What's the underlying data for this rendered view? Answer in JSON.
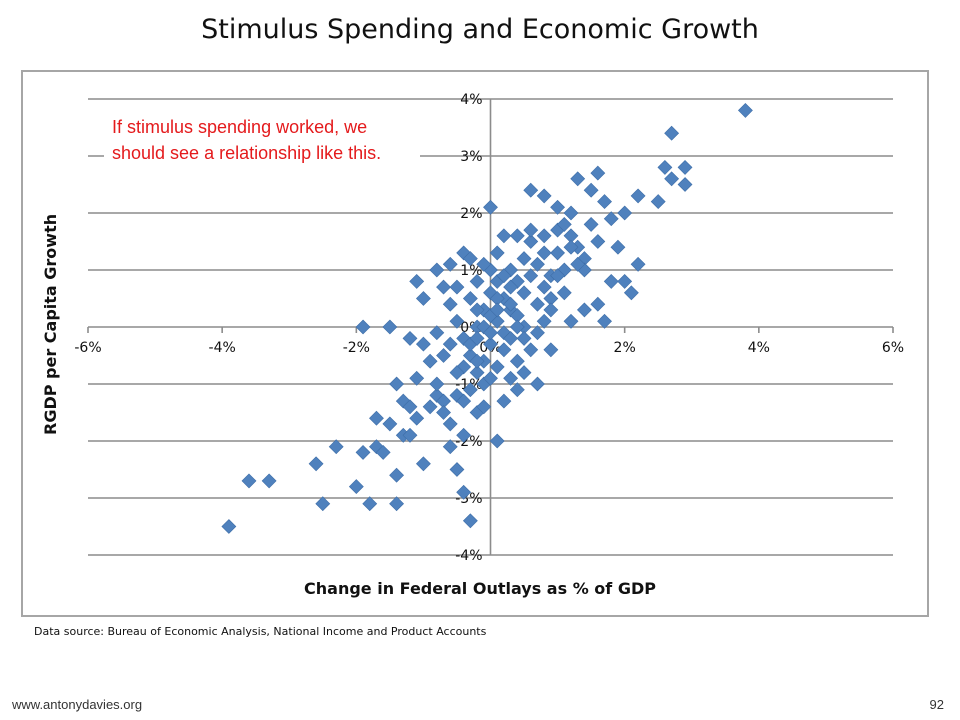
{
  "title": "Stimulus Spending and Economic Growth",
  "annotation": "If stimulus spending worked, we should see a relationship like this.",
  "source": "Data source: Bureau of Economic Analysis, National Income and Product Accounts",
  "footer": {
    "url": "www.antonydavies.org",
    "page": "92"
  },
  "colors": {
    "marker": "#4f81bd",
    "annotation": "#e41a1c",
    "grid": "#8c8c8c"
  },
  "chart_data": {
    "type": "scatter",
    "title": "Stimulus Spending and Economic Growth",
    "xlabel": "Change in Federal Outlays as % of GDP",
    "ylabel": "RGDP per Capita Growth",
    "xlim": [
      -6,
      6
    ],
    "ylim": [
      -4,
      4
    ],
    "xticks": [
      "-6%",
      "-4%",
      "-2%",
      "0%",
      "2%",
      "4%",
      "6%"
    ],
    "yticks": [
      "-4%",
      "-3%",
      "-2%",
      "-1%",
      "0%",
      "1%",
      "2%",
      "3%",
      "4%"
    ],
    "grid": "horizontal",
    "legend": "none",
    "marker": "diamond",
    "points": [
      [
        -3.9,
        -3.5
      ],
      [
        -3.6,
        -2.7
      ],
      [
        -3.3,
        -2.7
      ],
      [
        -2.6,
        -2.4
      ],
      [
        -2.5,
        -3.1
      ],
      [
        -2.3,
        -2.1
      ],
      [
        -2.0,
        -2.8
      ],
      [
        -1.9,
        -2.2
      ],
      [
        -1.8,
        -3.1
      ],
      [
        -1.7,
        -2.1
      ],
      [
        -1.7,
        -1.6
      ],
      [
        -1.6,
        -2.2
      ],
      [
        -1.5,
        -1.7
      ],
      [
        -1.4,
        -2.6
      ],
      [
        -1.4,
        -3.1
      ],
      [
        -1.3,
        -1.9
      ],
      [
        -1.2,
        -1.9
      ],
      [
        -1.4,
        -1.0
      ],
      [
        -1.3,
        -1.3
      ],
      [
        -1.1,
        -0.9
      ],
      [
        -1.0,
        -2.4
      ],
      [
        -0.8,
        -1.2
      ],
      [
        -0.7,
        -1.3
      ],
      [
        -0.6,
        -2.1
      ],
      [
        -0.5,
        -2.5
      ],
      [
        -0.4,
        -1.9
      ],
      [
        -0.4,
        -2.9
      ],
      [
        -0.6,
        -0.3
      ],
      [
        -0.3,
        -3.4
      ],
      [
        -0.2,
        -1.5
      ],
      [
        -0.1,
        -1.0
      ],
      [
        0.1,
        -2.0
      ],
      [
        -1.9,
        0.0
      ],
      [
        -1.5,
        0.0
      ],
      [
        -1.2,
        -0.2
      ],
      [
        -1.0,
        -0.3
      ],
      [
        -0.8,
        -0.1
      ],
      [
        -1.1,
        0.8
      ],
      [
        -1.0,
        0.5
      ],
      [
        -0.8,
        1.0
      ],
      [
        -0.7,
        0.7
      ],
      [
        -0.6,
        0.4
      ],
      [
        -0.5,
        0.1
      ],
      [
        -0.4,
        -0.2
      ],
      [
        -0.3,
        -0.5
      ],
      [
        -0.2,
        -0.8
      ],
      [
        -0.1,
        -0.6
      ],
      [
        0.0,
        -0.3
      ],
      [
        0.1,
        0.1
      ],
      [
        0.2,
        -0.1
      ],
      [
        0.3,
        0.3
      ],
      [
        0.4,
        0.2
      ],
      [
        0.5,
        0.0
      ],
      [
        -0.9,
        -0.6
      ],
      [
        -0.8,
        -1.0
      ],
      [
        -0.7,
        -1.5
      ],
      [
        -0.6,
        -1.7
      ],
      [
        -0.5,
        -1.2
      ],
      [
        -0.4,
        -0.7
      ],
      [
        -0.3,
        -0.3
      ],
      [
        -0.2,
        0.0
      ],
      [
        -0.1,
        0.3
      ],
      [
        0.0,
        0.6
      ],
      [
        0.1,
        0.8
      ],
      [
        0.2,
        0.5
      ],
      [
        0.3,
        1.0
      ],
      [
        0.4,
        0.8
      ],
      [
        0.5,
        1.2
      ],
      [
        0.6,
        1.5
      ],
      [
        0.7,
        1.1
      ],
      [
        0.8,
        0.7
      ],
      [
        0.9,
        0.9
      ],
      [
        1.0,
        1.3
      ],
      [
        1.1,
        1.0
      ],
      [
        1.2,
        1.6
      ],
      [
        1.3,
        1.4
      ],
      [
        1.4,
        1.2
      ],
      [
        1.5,
        1.8
      ],
      [
        0.6,
        2.4
      ],
      [
        0.8,
        2.3
      ],
      [
        1.0,
        2.1
      ],
      [
        1.2,
        2.0
      ],
      [
        1.3,
        2.6
      ],
      [
        1.5,
        2.4
      ],
      [
        1.6,
        2.7
      ],
      [
        1.7,
        2.2
      ],
      [
        1.8,
        1.9
      ],
      [
        2.0,
        2.0
      ],
      [
        2.2,
        2.3
      ],
      [
        2.5,
        2.2
      ],
      [
        2.6,
        2.8
      ],
      [
        2.7,
        2.6
      ],
      [
        2.9,
        2.8
      ],
      [
        2.9,
        2.5
      ],
      [
        2.7,
        3.4
      ],
      [
        3.8,
        3.8
      ],
      [
        1.8,
        0.8
      ],
      [
        1.9,
        1.4
      ],
      [
        2.0,
        0.8
      ],
      [
        2.1,
        0.6
      ],
      [
        2.2,
        1.1
      ],
      [
        1.7,
        0.1
      ],
      [
        1.6,
        0.4
      ],
      [
        1.4,
        0.3
      ],
      [
        1.2,
        0.1
      ],
      [
        1.1,
        0.6
      ],
      [
        1.0,
        0.9
      ],
      [
        0.9,
        0.5
      ],
      [
        0.8,
        0.1
      ],
      [
        0.7,
        -0.1
      ],
      [
        0.6,
        -0.4
      ],
      [
        0.5,
        -0.2
      ],
      [
        0.4,
        -0.6
      ],
      [
        0.3,
        -0.9
      ],
      [
        0.2,
        -1.3
      ],
      [
        0.4,
        -1.1
      ],
      [
        0.5,
        -0.8
      ],
      [
        0.7,
        -1.0
      ],
      [
        0.9,
        -0.4
      ],
      [
        -1.2,
        -1.4
      ],
      [
        -1.1,
        -1.6
      ],
      [
        -0.9,
        -1.4
      ],
      [
        -0.7,
        -0.5
      ],
      [
        -0.5,
        -0.8
      ],
      [
        -0.4,
        -1.3
      ],
      [
        -0.3,
        -1.1
      ],
      [
        -0.2,
        -0.6
      ],
      [
        -0.1,
        -1.4
      ],
      [
        0.0,
        -0.9
      ],
      [
        0.1,
        -0.7
      ],
      [
        0.2,
        -0.4
      ],
      [
        0.3,
        -0.2
      ],
      [
        0.2,
        1.6
      ],
      [
        0.1,
        1.3
      ],
      [
        0.0,
        1.0
      ],
      [
        -0.1,
        1.1
      ],
      [
        -0.2,
        0.8
      ],
      [
        -0.3,
        0.5
      ],
      [
        -0.5,
        0.7
      ],
      [
        -0.6,
        1.1
      ],
      [
        -0.4,
        1.3
      ],
      [
        -0.3,
        1.2
      ],
      [
        -0.2,
        0.3
      ],
      [
        0.0,
        2.1
      ],
      [
        0.4,
        1.6
      ],
      [
        0.6,
        1.7
      ],
      [
        0.8,
        1.6
      ],
      [
        1.0,
        1.7
      ],
      [
        1.2,
        1.4
      ],
      [
        1.4,
        1.0
      ],
      [
        1.6,
        1.5
      ],
      [
        0.3,
        0.7
      ],
      [
        0.5,
        0.6
      ],
      [
        0.7,
        0.4
      ],
      [
        0.9,
        0.3
      ],
      [
        1.1,
        1.8
      ],
      [
        0.0,
        0.2
      ],
      [
        0.1,
        0.5
      ],
      [
        0.2,
        0.9
      ],
      [
        0.3,
        0.4
      ],
      [
        -0.1,
        0.0
      ],
      [
        0.0,
        -0.1
      ],
      [
        0.1,
        0.3
      ],
      [
        -0.2,
        -0.2
      ],
      [
        0.4,
        0.0
      ],
      [
        0.6,
        0.9
      ],
      [
        0.8,
        1.3
      ],
      [
        1.3,
        1.1
      ]
    ]
  }
}
